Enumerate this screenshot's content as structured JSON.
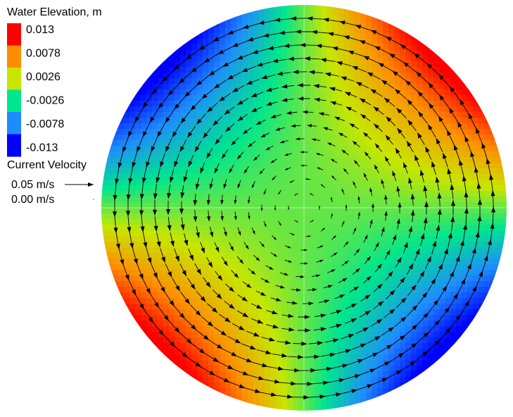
{
  "chart_data": {
    "type": "contour",
    "title": "Water Elevation, m",
    "levels": [
      {
        "value": 0.013,
        "color": "#ff0000"
      },
      {
        "value": 0.0078,
        "color": "#ff8c00"
      },
      {
        "value": 0.0026,
        "color": "#c8e600"
      },
      {
        "value": -0.0026,
        "color": "#00e68c"
      },
      {
        "value": -0.0078,
        "color": "#1e8cff"
      },
      {
        "value": -0.013,
        "color": "#0000ff"
      }
    ],
    "vector_legend": {
      "title": "Current Velocity",
      "reference": [
        {
          "value": 0.05,
          "label": "0.05 m/s"
        },
        {
          "value": 0,
          "label": "0.00 m/s"
        }
      ]
    }
  }
}
